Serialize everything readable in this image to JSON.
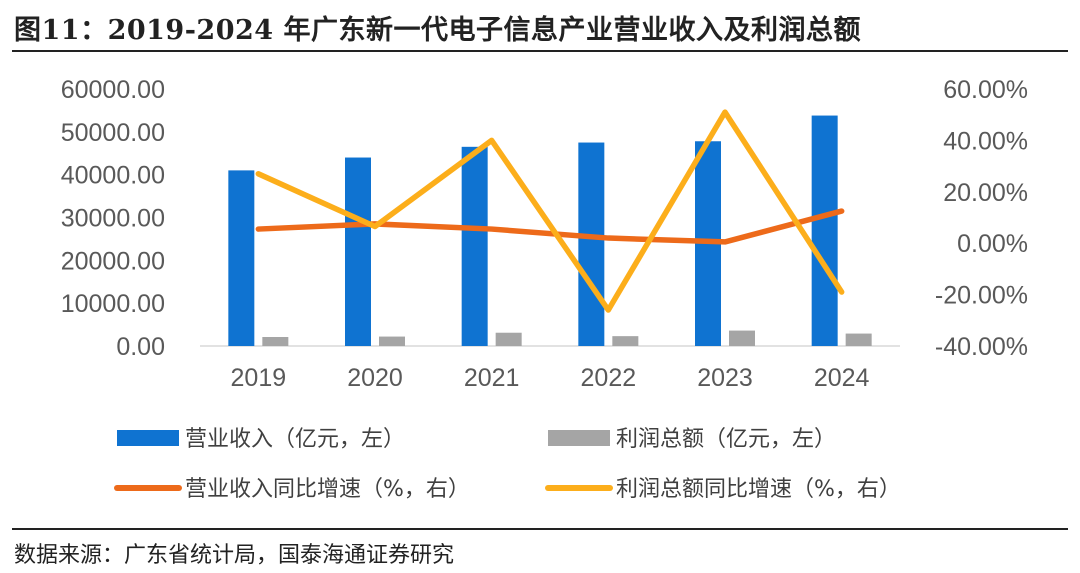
{
  "title": "图11：2019-2024 年广东新一代电子信息产业营业收入及利润总额",
  "source": "数据来源：广东省统计局，国泰海通证券研究",
  "colors": {
    "revenue": "#0f73d1",
    "profit": "#a5a5a5",
    "revenue_growth": "#ed6a1a",
    "profit_growth": "#fcae1b"
  },
  "chart_data": {
    "type": "bar",
    "categories": [
      "2019",
      "2020",
      "2021",
      "2022",
      "2023",
      "2024"
    ],
    "series": [
      {
        "name": "营业收入（亿元，左）",
        "type": "bar",
        "axis": "left",
        "values": [
          41000,
          44000,
          46500,
          47500,
          47800,
          53800
        ]
      },
      {
        "name": "利润总额（亿元，左）",
        "type": "bar",
        "axis": "left",
        "values": [
          2100,
          2200,
          3100,
          2300,
          3600,
          2900
        ]
      },
      {
        "name": "营业收入同比增速（%，右）",
        "type": "line",
        "axis": "right",
        "values": [
          5.5,
          7.5,
          5.5,
          2.0,
          0.5,
          12.5
        ]
      },
      {
        "name": "利润总额同比增速（%，右）",
        "type": "line",
        "axis": "right",
        "values": [
          27.0,
          6.5,
          40.0,
          -26.0,
          51.0,
          -19.0
        ]
      }
    ],
    "y_left": {
      "min": 0,
      "max": 60000,
      "ticks": [
        "60000.00",
        "50000.00",
        "40000.00",
        "30000.00",
        "20000.00",
        "10000.00",
        "0.00"
      ]
    },
    "y_right": {
      "min": -40,
      "max": 60,
      "ticks": [
        "60.00%",
        "40.00%",
        "20.00%",
        "0.00%",
        "-20.00%",
        "-40.00%"
      ]
    },
    "legend": [
      "营业收入（亿元，左）",
      "利润总额（亿元，左）",
      "营业收入同比增速（%，右）",
      "利润总额同比增速（%，右）"
    ],
    "legend_position": "bottom"
  }
}
